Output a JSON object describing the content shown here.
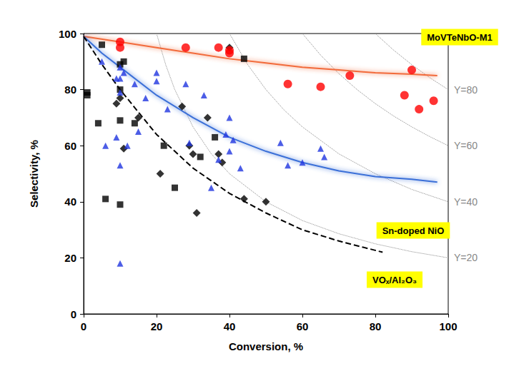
{
  "chart_data": {
    "type": "scatter",
    "x_label": "Conversion, %",
    "y_label": "Selectivity, %",
    "xlim": [
      0,
      100
    ],
    "xticks": [
      0,
      20,
      40,
      60,
      80,
      100
    ],
    "ylim": [
      0,
      100
    ],
    "yticks": [
      0,
      20,
      40,
      60,
      80,
      100
    ],
    "grid": false,
    "series": [
      {
        "type": "line",
        "color": "#888888",
        "line_style": "dotted",
        "name": "Y=80",
        "x": [
          80,
          85,
          90,
          95,
          100
        ],
        "values": [
          100,
          94.1,
          88.9,
          84.2,
          80
        ]
      },
      {
        "type": "line",
        "color": "#888888",
        "line_style": "dotted",
        "name": "Y=60",
        "x": [
          60,
          65,
          70,
          75,
          80,
          85,
          90,
          95,
          100
        ],
        "values": [
          100,
          92.3,
          85.7,
          80,
          75,
          70.6,
          66.7,
          63.2,
          60
        ]
      },
      {
        "type": "line",
        "color": "#888888",
        "line_style": "dotted",
        "name": "Y=40",
        "x": [
          40,
          45,
          50,
          55,
          60,
          70,
          80,
          90,
          100
        ],
        "values": [
          100,
          88.9,
          80,
          72.7,
          66.7,
          57.1,
          50,
          44.4,
          40
        ]
      },
      {
        "type": "line",
        "color": "#888888",
        "line_style": "dotted",
        "name": "Y=20",
        "x": [
          20,
          22.5,
          25,
          30,
          35,
          40,
          50,
          60,
          70,
          80,
          90,
          100
        ],
        "values": [
          100,
          88.9,
          80,
          66.7,
          57.1,
          50,
          40,
          33.3,
          28.6,
          25,
          22.2,
          20
        ]
      },
      {
        "type": "line",
        "color": "#f26b3a",
        "line_style": "solid",
        "x": [
          0,
          10,
          20,
          30,
          40,
          50,
          60,
          70,
          80,
          90,
          97
        ],
        "values": [
          99,
          97,
          95,
          93,
          91,
          89.5,
          88,
          87,
          86,
          85.5,
          85
        ]
      },
      {
        "type": "line",
        "color": "#3a6fd8",
        "line_style": "solid",
        "x": [
          0,
          5,
          10,
          20,
          30,
          40,
          50,
          60,
          70,
          80,
          90,
          97
        ],
        "values": [
          99,
          93,
          88,
          78,
          70,
          63,
          58,
          54,
          51,
          49,
          48,
          47
        ]
      },
      {
        "type": "line",
        "color": "#000000",
        "line_style": "dashed",
        "x": [
          0,
          5,
          10,
          20,
          30,
          40,
          50,
          60,
          70,
          82
        ],
        "values": [
          99,
          89,
          80,
          64,
          52,
          43,
          36,
          30,
          26,
          22
        ]
      },
      {
        "type": "scatter",
        "color": "#000000",
        "marker": "square",
        "x": [
          1,
          1,
          4,
          5,
          6,
          10,
          10,
          10,
          10,
          11,
          14,
          22,
          25,
          32,
          36,
          44
        ],
        "values": [
          79,
          78,
          68,
          96,
          41,
          89,
          80,
          69,
          39,
          90,
          68,
          60,
          45,
          56,
          63,
          91
        ]
      },
      {
        "type": "scatter",
        "color": "#000000",
        "marker": "diamond",
        "x": [
          9,
          10,
          11,
          15,
          21,
          27,
          29,
          30,
          31,
          34,
          37,
          38,
          40,
          44,
          50
        ],
        "values": [
          75,
          77,
          59,
          70,
          50,
          74,
          60,
          57,
          36,
          70,
          57,
          54,
          95,
          41,
          40
        ]
      },
      {
        "type": "scatter",
        "color": "#1f35e0",
        "marker": "triangle",
        "x": [
          5,
          6,
          9,
          10,
          10,
          10,
          10,
          9,
          10,
          11,
          12,
          14,
          15,
          17,
          20,
          20,
          23,
          28,
          29,
          33,
          35,
          37,
          39,
          40,
          40,
          41,
          43,
          54,
          56,
          60,
          65,
          66
        ],
        "values": [
          90,
          60,
          84,
          84,
          88,
          79,
          53,
          63,
          18,
          86,
          60,
          82,
          65,
          77,
          83,
          86,
          73,
          82,
          61,
          78,
          45,
          55,
          64,
          70,
          58,
          62,
          52,
          61,
          53,
          54,
          59,
          56
        ]
      },
      {
        "type": "scatter",
        "color": "#ff0000",
        "marker": "circle",
        "x": [
          10,
          10,
          28,
          37,
          40,
          40,
          56,
          65,
          73,
          88,
          90,
          92,
          96
        ],
        "values": [
          97,
          95,
          95,
          95,
          94,
          93,
          82,
          81,
          85,
          78,
          87,
          73,
          76
        ]
      }
    ],
    "annotations": [
      {
        "text": "MoVTeNbO-M1"
      },
      {
        "text": "Sn-doped NiO"
      },
      {
        "text": "VOₓ/Al₂O₃"
      }
    ]
  }
}
